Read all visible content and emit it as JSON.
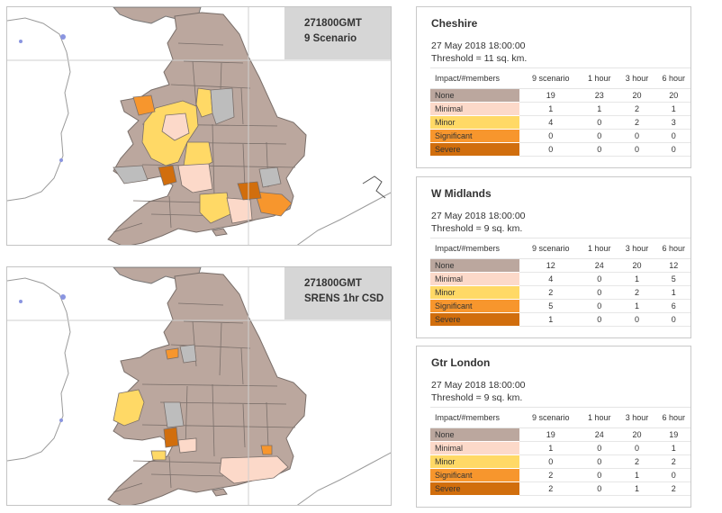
{
  "maps": [
    {
      "line1": "271800GMT",
      "line2": "9 Scenario"
    },
    {
      "line1": "271800GMT",
      "line2": "SRENS 1hr CSD"
    }
  ],
  "colors": {
    "None": "#bba79e",
    "Minimal": "#fcd9c9",
    "Minor": "#ffd966",
    "Significant": "#f7962d",
    "Severe": "#d16e0d",
    "grey_region": "#bdbdbd",
    "sea": "#ffffff",
    "coast_line": "#9a9a9a"
  },
  "table_headers": [
    "Impact/#members",
    "9 scenario",
    "1 hour",
    "3 hour",
    "6 hour"
  ],
  "cards": [
    {
      "title": "Cheshire",
      "date": "27 May 2018 18:00:00",
      "threshold": "Threshold = 11 sq. km.",
      "rows": [
        {
          "cat": "None",
          "v": [
            "19",
            "23",
            "20",
            "20"
          ]
        },
        {
          "cat": "Minimal",
          "v": [
            "1",
            "1",
            "2",
            "1"
          ]
        },
        {
          "cat": "Minor",
          "v": [
            "4",
            "0",
            "2",
            "3"
          ]
        },
        {
          "cat": "Significant",
          "v": [
            "0",
            "0",
            "0",
            "0"
          ]
        },
        {
          "cat": "Severe",
          "v": [
            "0",
            "0",
            "0",
            "0"
          ]
        }
      ]
    },
    {
      "title": "W Midlands",
      "date": "27 May 2018 18:00:00",
      "threshold": "Threshold = 9 sq. km.",
      "rows": [
        {
          "cat": "None",
          "v": [
            "12",
            "24",
            "20",
            "12"
          ]
        },
        {
          "cat": "Minimal",
          "v": [
            "4",
            "0",
            "1",
            "5"
          ]
        },
        {
          "cat": "Minor",
          "v": [
            "2",
            "0",
            "2",
            "1"
          ]
        },
        {
          "cat": "Significant",
          "v": [
            "5",
            "0",
            "1",
            "6"
          ]
        },
        {
          "cat": "Severe",
          "v": [
            "1",
            "0",
            "0",
            "0"
          ]
        }
      ]
    },
    {
      "title": "Gtr London",
      "date": "27 May 2018 18:00:00",
      "threshold": "Threshold = 9 sq. km.",
      "rows": [
        {
          "cat": "None",
          "v": [
            "19",
            "24",
            "20",
            "19"
          ]
        },
        {
          "cat": "Minimal",
          "v": [
            "1",
            "0",
            "0",
            "1"
          ]
        },
        {
          "cat": "Minor",
          "v": [
            "0",
            "0",
            "2",
            "2"
          ]
        },
        {
          "cat": "Significant",
          "v": [
            "2",
            "0",
            "1",
            "0"
          ]
        },
        {
          "cat": "Severe",
          "v": [
            "2",
            "0",
            "1",
            "2"
          ]
        }
      ]
    }
  ]
}
